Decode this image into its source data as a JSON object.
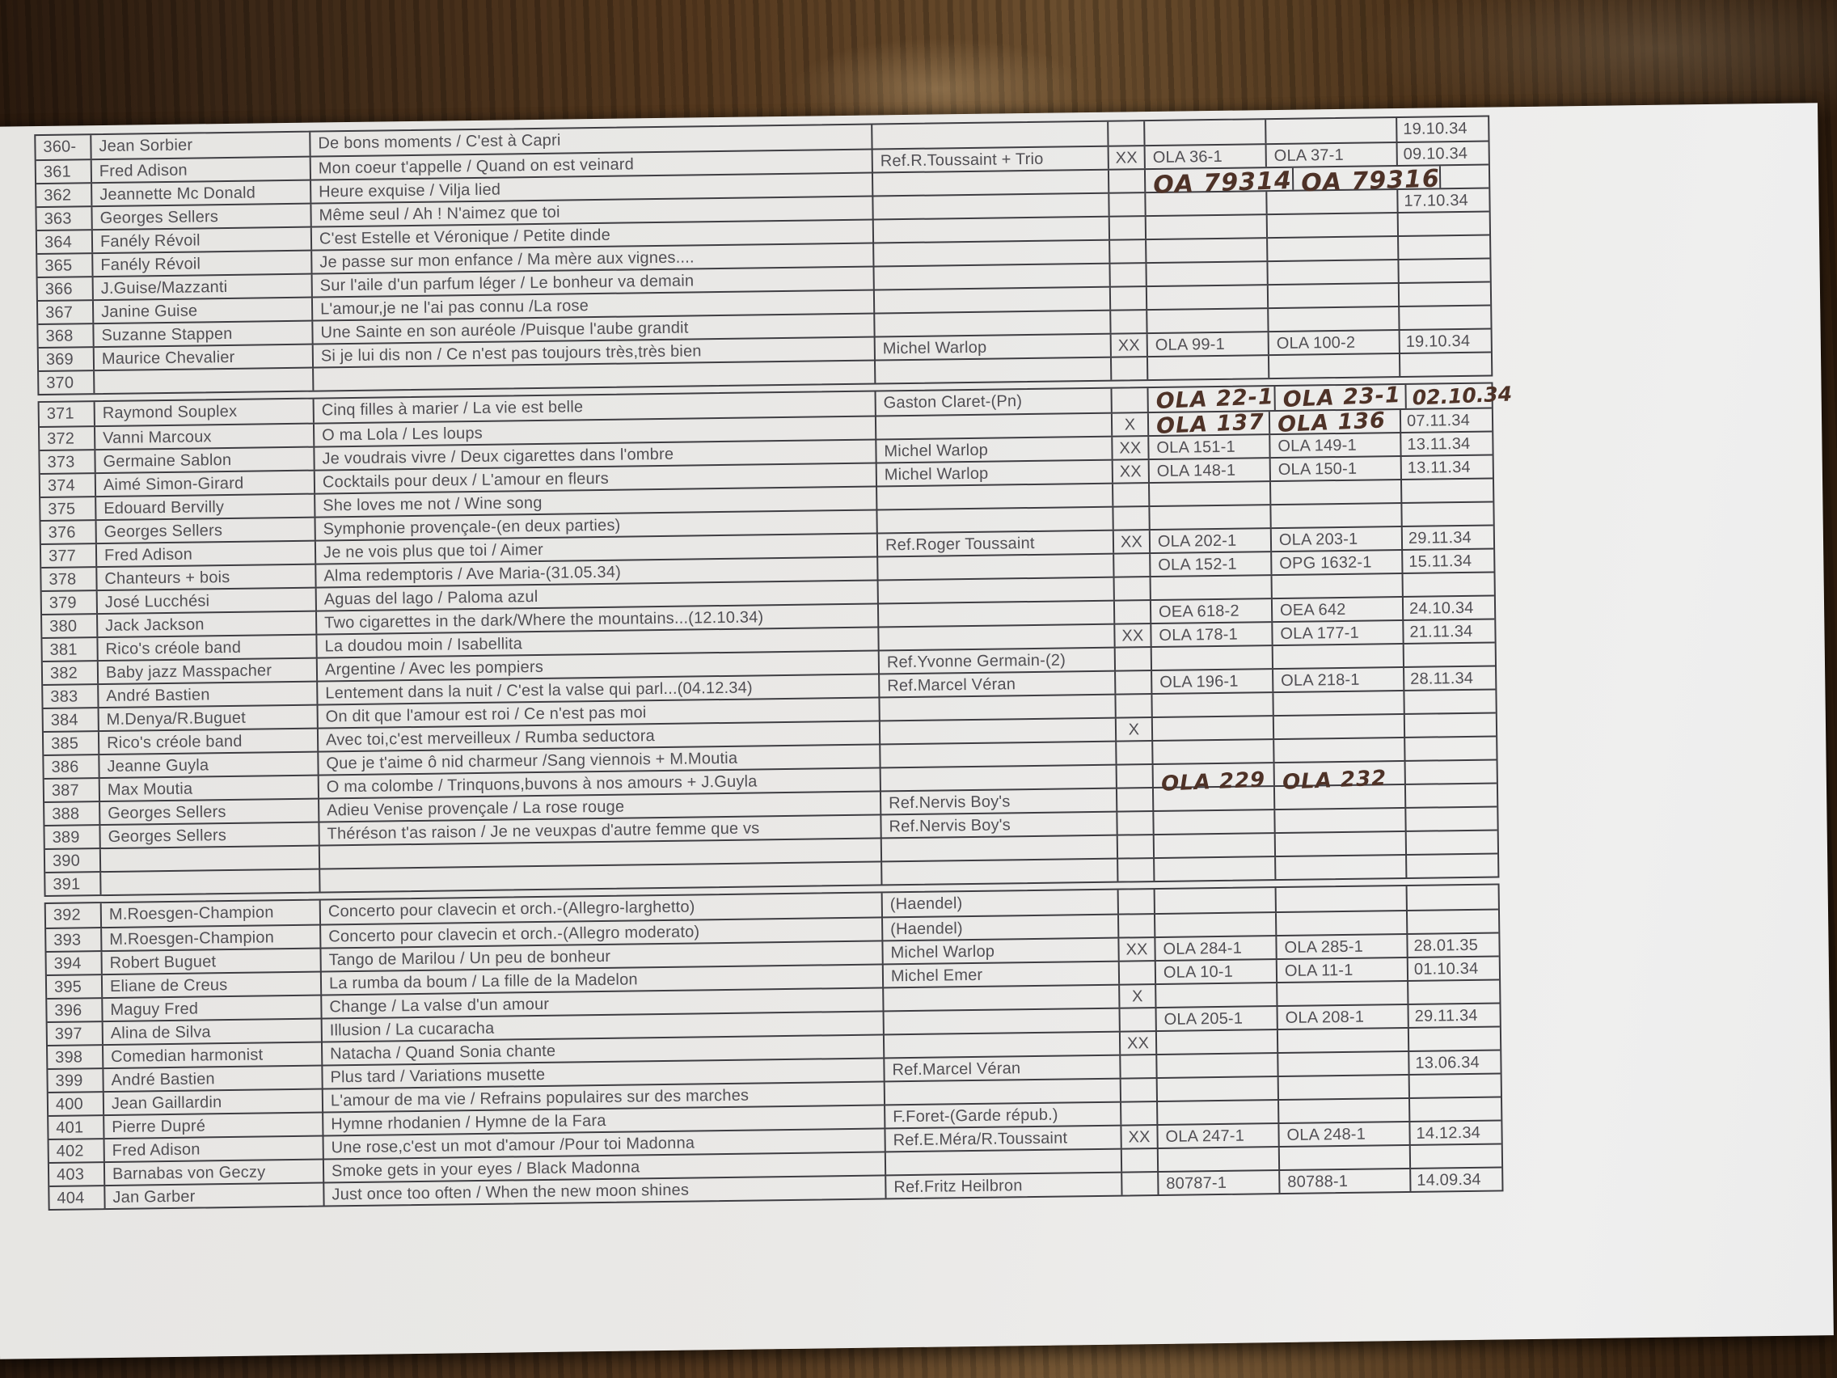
{
  "colors": {
    "paper": "#eae9e6",
    "table_line": "#3e3d42",
    "printed_ink": "#514f54",
    "handwritten_ink": "#4e3227",
    "wood_dark": "#2a1a0e",
    "wood_light": "#6b4e2e"
  },
  "rows": [
    {
      "num": "360-",
      "artist": "Jean Sorbier",
      "titles": "De bons moments / C'est à Capri",
      "ref": "",
      "xx": "",
      "mat1": "",
      "mat2": "",
      "date": "19.10.34"
    },
    {
      "num": "361",
      "artist": "Fred Adison",
      "titles": "Mon coeur t'appelle / Quand on est veinard",
      "ref": "Ref.R.Toussaint + Trio",
      "xx": "XX",
      "mat1": "OLA 36-1",
      "mat2": "OLA 37-1",
      "date": "09.10.34"
    },
    {
      "num": "362",
      "artist": "Jeannette Mc Donald",
      "titles": "Heure exquise / Vilja lied",
      "ref": "",
      "xx": "",
      "mat1": "OA 79314",
      "mat2": "OA 79316",
      "date": "",
      "hw": [
        "mat1",
        "mat2"
      ]
    },
    {
      "num": "363",
      "artist": "Georges Sellers",
      "titles": "Même seul / Ah ! N'aimez que toi",
      "ref": "",
      "xx": "",
      "mat1": "",
      "mat2": "",
      "date": "17.10.34"
    },
    {
      "num": "364",
      "artist": "Fanély Révoil",
      "titles": "C'est Estelle et Véronique / Petite dinde",
      "ref": "",
      "xx": "",
      "mat1": "",
      "mat2": "",
      "date": ""
    },
    {
      "num": "365",
      "artist": "Fanély Révoil",
      "titles": "Je passe sur mon enfance / Ma mère aux vignes....",
      "ref": "",
      "xx": "",
      "mat1": "",
      "mat2": "",
      "date": ""
    },
    {
      "num": "366",
      "artist": "J.Guise/Mazzanti",
      "titles": "Sur l'aile d'un parfum léger / Le bonheur va demain",
      "ref": "",
      "xx": "",
      "mat1": "",
      "mat2": "",
      "date": ""
    },
    {
      "num": "367",
      "artist": "Janine Guise",
      "titles": "L'amour,je ne l'ai pas connu /La rose",
      "ref": "",
      "xx": "",
      "mat1": "",
      "mat2": "",
      "date": ""
    },
    {
      "num": "368",
      "artist": "Suzanne Stappen",
      "titles": "Une Sainte en son auréole /Puisque l'aube grandit",
      "ref": "",
      "xx": "",
      "mat1": "",
      "mat2": "",
      "date": ""
    },
    {
      "num": "369",
      "artist": "Maurice Chevalier",
      "titles": "Si je lui dis non / Ce n'est pas toujours très,très bien",
      "ref": "Michel Warlop",
      "xx": "XX",
      "mat1": "OLA 99-1",
      "mat2": "OLA 100-2",
      "date": "19.10.34"
    },
    {
      "num": "370",
      "artist": "",
      "titles": "",
      "ref": "",
      "xx": "",
      "mat1": "",
      "mat2": "",
      "date": ""
    },
    {
      "num": "371",
      "artist": "Raymond Souplex",
      "titles": "Cinq filles à marier / La vie est belle",
      "ref": "Gaston Claret-(Pn)",
      "xx": "",
      "mat1": "OLA 22-1",
      "mat2": "OLA 23-1",
      "date": "02.10.34",
      "hw": [
        "mat1",
        "mat2",
        "date"
      ],
      "gap_before": true
    },
    {
      "num": "372",
      "artist": "Vanni Marcoux",
      "titles": "O ma Lola / Les loups",
      "ref": "",
      "xx": "X",
      "mat1": "OLA 137",
      "mat2": "OLA 136",
      "date": "07.11.34",
      "hw": [
        "mat1",
        "mat2"
      ]
    },
    {
      "num": "373",
      "artist": "Germaine Sablon",
      "titles": "Je voudrais vivre / Deux cigarettes dans l'ombre",
      "ref": "Michel Warlop",
      "xx": "XX",
      "mat1": "OLA 151-1",
      "mat2": "OLA 149-1",
      "date": "13.11.34"
    },
    {
      "num": "374",
      "artist": "Aimé Simon-Girard",
      "titles": "Cocktails pour deux / L'amour en fleurs",
      "ref": "Michel Warlop",
      "xx": "XX",
      "mat1": "OLA 148-1",
      "mat2": "OLA 150-1",
      "date": "13.11.34"
    },
    {
      "num": "375",
      "artist": "Edouard Bervilly",
      "titles": "She loves me not / Wine song",
      "ref": "",
      "xx": "",
      "mat1": "",
      "mat2": "",
      "date": ""
    },
    {
      "num": "376",
      "artist": "Georges Sellers",
      "titles": "Symphonie provençale-(en deux parties)",
      "ref": "",
      "xx": "",
      "mat1": "",
      "mat2": "",
      "date": ""
    },
    {
      "num": "377",
      "artist": "Fred Adison",
      "titles": "Je ne vois plus que toi / Aimer",
      "ref": "Ref.Roger Toussaint",
      "xx": "XX",
      "mat1": "OLA 202-1",
      "mat2": "OLA 203-1",
      "date": "29.11.34"
    },
    {
      "num": "378",
      "artist": "Chanteurs + bois",
      "titles": "Alma redemptoris / Ave Maria-(31.05.34)",
      "ref": "",
      "xx": "",
      "mat1": "OLA 152-1",
      "mat2": "OPG 1632-1",
      "date": "15.11.34"
    },
    {
      "num": "379",
      "artist": "José Lucchési",
      "titles": "Aguas del lago / Paloma azul",
      "ref": "",
      "xx": "",
      "mat1": "",
      "mat2": "",
      "date": ""
    },
    {
      "num": "380",
      "artist": "Jack Jackson",
      "titles": "Two cigarettes in the dark/Where the mountains...(12.10.34)",
      "ref": "",
      "xx": "",
      "mat1": "OEA 618-2",
      "mat2": "OEA 642",
      "date": "24.10.34"
    },
    {
      "num": "381",
      "artist": "Rico's créole band",
      "titles": "La doudou moin / Isabellita",
      "ref": "",
      "xx": "XX",
      "mat1": "OLA 178-1",
      "mat2": "OLA 177-1",
      "date": "21.11.34"
    },
    {
      "num": "382",
      "artist": "Baby jazz Masspacher",
      "titles": "Argentine / Avec les pompiers",
      "ref": "Ref.Yvonne Germain-(2)",
      "xx": "",
      "mat1": "",
      "mat2": "",
      "date": ""
    },
    {
      "num": "383",
      "artist": "André Bastien",
      "titles": "Lentement dans la nuit / C'est la valse qui parl...(04.12.34)",
      "ref": "Ref.Marcel Véran",
      "xx": "",
      "mat1": "OLA 196-1",
      "mat2": "OLA 218-1",
      "date": "28.11.34"
    },
    {
      "num": "384",
      "artist": "M.Denya/R.Buguet",
      "titles": "On dit que l'amour est roi / Ce n'est pas moi",
      "ref": "",
      "xx": "",
      "mat1": "",
      "mat2": "",
      "date": ""
    },
    {
      "num": "385",
      "artist": "Rico's créole band",
      "titles": "Avec toi,c'est merveilleux / Rumba seductora",
      "ref": "",
      "xx": "X",
      "mat1": "",
      "mat2": "",
      "date": ""
    },
    {
      "num": "386",
      "artist": "Jeanne Guyla",
      "titles": "Que je t'aime ô nid charmeur /Sang viennois + M.Moutia",
      "ref": "",
      "xx": "",
      "mat1": "",
      "mat2": "",
      "date": ""
    },
    {
      "num": "387",
      "artist": "Max Moutia",
      "titles": "O ma colombe / Trinquons,buvons à nos amours + J.Guyla",
      "ref": "",
      "xx": "",
      "mat1": "OLA 229",
      "mat2": "OLA 232",
      "date": "",
      "hw": [
        "mat1",
        "mat2"
      ]
    },
    {
      "num": "388",
      "artist": "Georges Sellers",
      "titles": "Adieu Venise provençale / La rose rouge",
      "ref": "Ref.Nervis Boy's",
      "xx": "",
      "mat1": "",
      "mat2": "",
      "date": ""
    },
    {
      "num": "389",
      "artist": "Georges Sellers",
      "titles": "Théréson t'as raison / Je ne veuxpas d'autre femme que vs",
      "ref": "Ref.Nervis Boy's",
      "xx": "",
      "mat1": "",
      "mat2": "",
      "date": ""
    },
    {
      "num": "390",
      "artist": "",
      "titles": "",
      "ref": "",
      "xx": "",
      "mat1": "",
      "mat2": "",
      "date": ""
    },
    {
      "num": "391",
      "artist": "",
      "titles": "",
      "ref": "",
      "xx": "",
      "mat1": "",
      "mat2": "",
      "date": ""
    },
    {
      "num": "392",
      "artist": "M.Roesgen-Champion",
      "titles": "Concerto pour clavecin et orch.-(Allegro-larghetto)",
      "ref": "(Haendel)",
      "xx": "",
      "mat1": "",
      "mat2": "",
      "date": "",
      "gap_before": true
    },
    {
      "num": "393",
      "artist": "M.Roesgen-Champion",
      "titles": "Concerto pour clavecin et orch.-(Allegro moderato)",
      "ref": "(Haendel)",
      "xx": "",
      "mat1": "",
      "mat2": "",
      "date": ""
    },
    {
      "num": "394",
      "artist": "Robert Buguet",
      "titles": "Tango de Marilou / Un peu de bonheur",
      "ref": "Michel Warlop",
      "xx": "XX",
      "mat1": "OLA 284-1",
      "mat2": "OLA 285-1",
      "date": "28.01.35"
    },
    {
      "num": "395",
      "artist": "Eliane de Creus",
      "titles": "La rumba da boum / La fille de la Madelon",
      "ref": "Michel Emer",
      "xx": "",
      "mat1": "OLA 10-1",
      "mat2": "OLA 11-1",
      "date": "01.10.34"
    },
    {
      "num": "396",
      "artist": "Maguy Fred",
      "titles": "Change / La valse d'un amour",
      "ref": "",
      "xx": "X",
      "mat1": "",
      "mat2": "",
      "date": ""
    },
    {
      "num": "397",
      "artist": "Alina de Silva",
      "titles": "Illusion / La cucaracha",
      "ref": "",
      "xx": "",
      "mat1": "OLA 205-1",
      "mat2": "OLA 208-1",
      "date": "29.11.34"
    },
    {
      "num": "398",
      "artist": "Comedian harmonist",
      "titles": "Natacha / Quand Sonia chante",
      "ref": "",
      "xx": "XX",
      "mat1": "",
      "mat2": "",
      "date": ""
    },
    {
      "num": "399",
      "artist": "André Bastien",
      "titles": "Plus tard / Variations musette",
      "ref": "Ref.Marcel Véran",
      "xx": "",
      "mat1": "",
      "mat2": "",
      "date": "13.06.34"
    },
    {
      "num": "400",
      "artist": "Jean Gaillardin",
      "titles": "L'amour de ma vie / Refrains populaires sur des marches",
      "ref": "",
      "xx": "",
      "mat1": "",
      "mat2": "",
      "date": ""
    },
    {
      "num": "401",
      "artist": "Pierre Dupré",
      "titles": "Hymne rhodanien / Hymne de la Fara",
      "ref": "F.Foret-(Garde répub.)",
      "xx": "",
      "mat1": "",
      "mat2": "",
      "date": ""
    },
    {
      "num": "402",
      "artist": "Fred Adison",
      "titles": "Une rose,c'est un mot d'amour /Pour toi Madonna",
      "ref": "Ref.E.Méra/R.Toussaint",
      "xx": "XX",
      "mat1": "OLA 247-1",
      "mat2": "OLA 248-1",
      "date": "14.12.34"
    },
    {
      "num": "403",
      "artist": "Barnabas von Geczy",
      "titles": "Smoke gets in your eyes / Black Madonna",
      "ref": "",
      "xx": "",
      "mat1": "",
      "mat2": "",
      "date": ""
    },
    {
      "num": "404",
      "artist": "Jan Garber",
      "titles": "Just once too often / When the new moon shines",
      "ref": "Ref.Fritz Heilbron",
      "xx": "",
      "mat1": "80787-1",
      "mat2": "80788-1",
      "date": "14.09.34"
    }
  ]
}
